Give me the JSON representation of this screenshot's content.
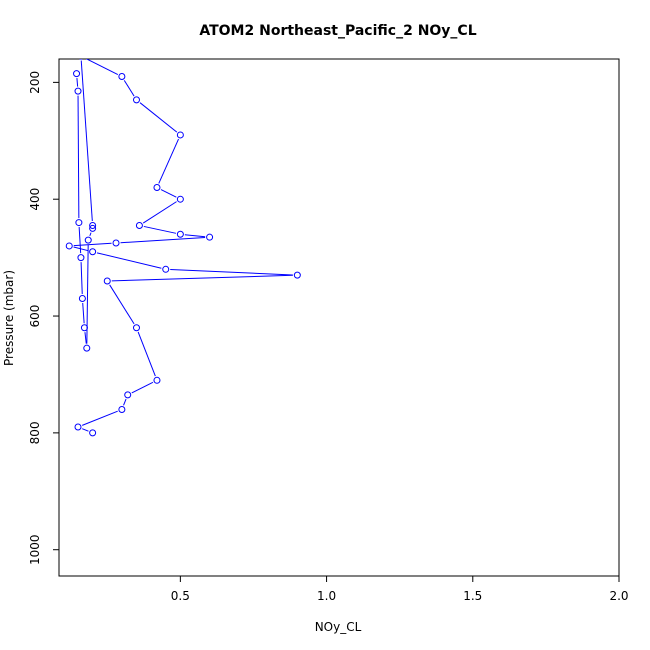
{
  "chart_data": {
    "type": "line",
    "title": "ATOM2 Northeast_Pacific_2 NOy_CL",
    "xlabel": "NOy_CL",
    "ylabel": "Pressure (mbar)",
    "xlim": [
      0.085,
      2.0
    ],
    "ylim": [
      1045,
      160
    ],
    "y_reversed": true,
    "grid": false,
    "x_ticks": [
      0.5,
      1.0,
      1.5,
      2.0
    ],
    "x_tick_labels": [
      "0.5",
      "1.0",
      "1.5",
      "2.0"
    ],
    "y_ticks": [
      200,
      400,
      600,
      800,
      1000
    ],
    "y_tick_labels": [
      "200",
      "400",
      "600",
      "800",
      "1000"
    ],
    "series_color": "#0000ff",
    "marker": "open-circle",
    "series": [
      {
        "x": [
          0.145,
          0.15,
          0.153,
          0.16,
          0.165,
          0.172,
          0.18,
          0.185,
          0.2,
          0.2,
          0.16,
          0.3,
          0.35,
          0.5,
          0.42,
          0.5,
          0.36,
          0.5,
          0.6,
          0.28,
          0.12,
          0.2,
          0.45,
          0.9,
          0.25,
          0.35,
          0.42,
          0.32,
          0.3,
          0.15,
          0.2
        ],
        "y": [
          185,
          215,
          440,
          500,
          570,
          620,
          655,
          470,
          450,
          445,
          155,
          190,
          230,
          290,
          380,
          400,
          445,
          460,
          465,
          475,
          480,
          490,
          520,
          530,
          540,
          620,
          710,
          735,
          760,
          790,
          800
        ]
      }
    ]
  }
}
